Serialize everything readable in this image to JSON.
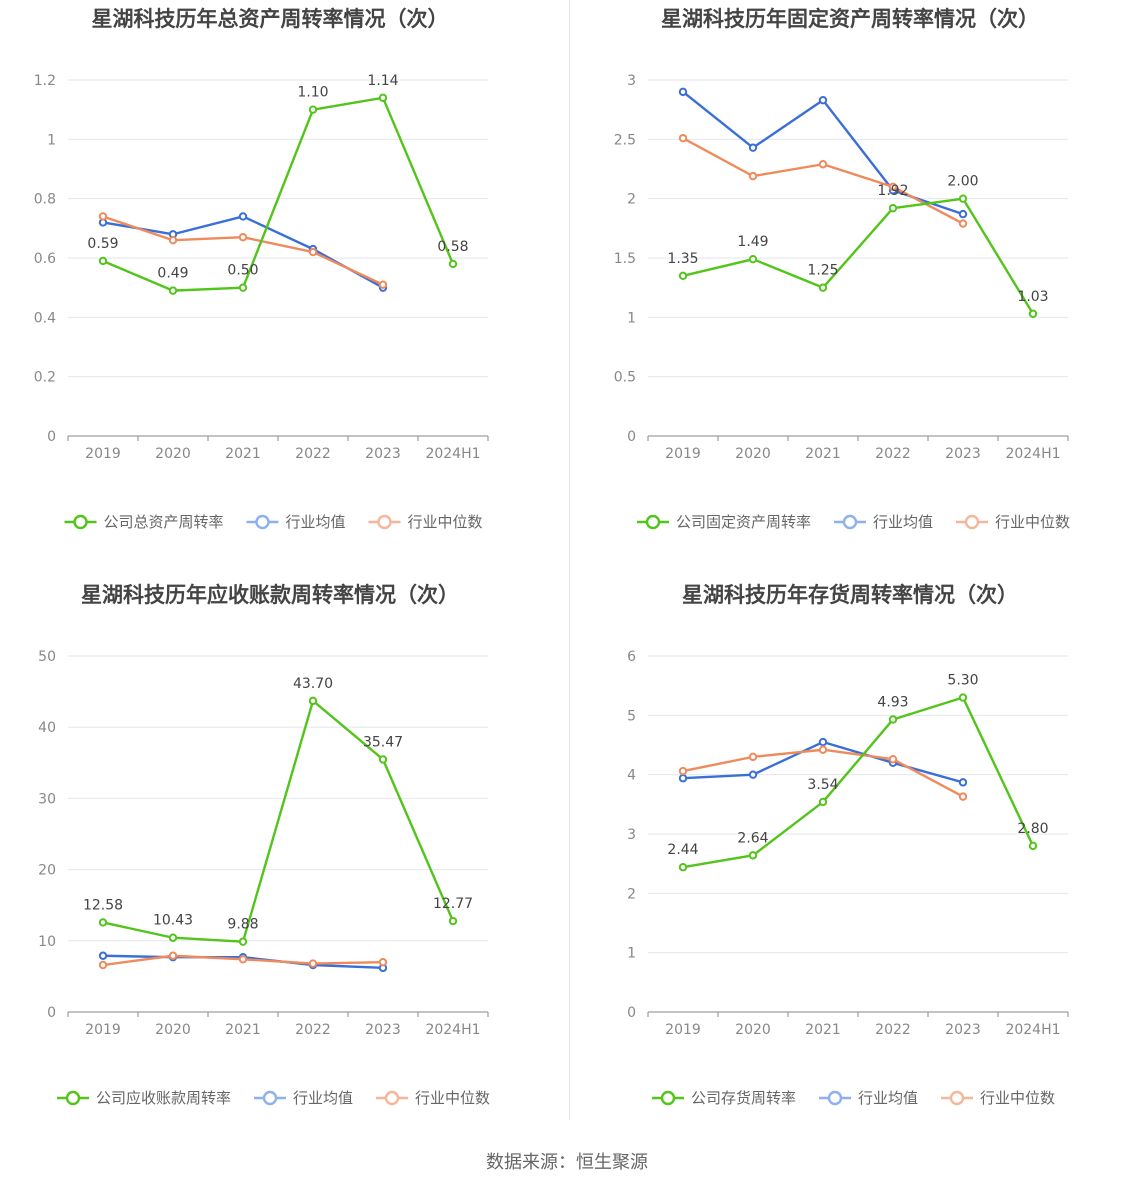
{
  "source": "数据来源：恒生聚源",
  "colors": {
    "company": "#52c41a",
    "avg": "#3a6fd8",
    "median": "#ef8a5c",
    "avg_legend": "#8fb0ee",
    "median_legend": "#f6b69c"
  },
  "chart_data": [
    {
      "type": "line",
      "title": "星湖科技历年总资产周转率情况（次）",
      "categories": [
        "2019",
        "2020",
        "2021",
        "2022",
        "2023",
        "2024H1"
      ],
      "ylim": [
        0,
        1.2
      ],
      "yticks": [
        0,
        0.2,
        0.4,
        0.6,
        0.8,
        1,
        1.2
      ],
      "ytick_labels": [
        "0",
        "0.2",
        "0.4",
        "0.6",
        "0.8",
        "1",
        "1.2"
      ],
      "grid": true,
      "legend": "bottom",
      "series": [
        {
          "name": "公司总资产周转率",
          "values": [
            0.59,
            0.49,
            0.5,
            1.1,
            1.14,
            0.58
          ],
          "labels": [
            "0.59",
            "0.49",
            "0.50",
            "1.10",
            "1.14",
            "0.58"
          ]
        },
        {
          "name": "行业均值",
          "values": [
            0.72,
            0.68,
            0.74,
            0.63,
            0.5,
            null
          ]
        },
        {
          "name": "行业中位数",
          "values": [
            0.74,
            0.66,
            0.67,
            0.62,
            0.51,
            null
          ]
        }
      ]
    },
    {
      "type": "line",
      "title": "星湖科技历年固定资产周转率情况（次）",
      "categories": [
        "2019",
        "2020",
        "2021",
        "2022",
        "2023",
        "2024H1"
      ],
      "ylim": [
        0,
        3
      ],
      "yticks": [
        0,
        0.5,
        1,
        1.5,
        2,
        2.5,
        3
      ],
      "ytick_labels": [
        "0",
        "0.5",
        "1",
        "1.5",
        "2",
        "2.5",
        "3"
      ],
      "grid": true,
      "legend": "bottom",
      "series": [
        {
          "name": "公司固定资产周转率",
          "values": [
            1.35,
            1.49,
            1.25,
            1.92,
            2.0,
            1.03
          ],
          "labels": [
            "1.35",
            "1.49",
            "1.25",
            "1.92",
            "2.00",
            "1.03"
          ]
        },
        {
          "name": "行业均值",
          "values": [
            2.9,
            2.43,
            2.83,
            2.07,
            1.87,
            null
          ]
        },
        {
          "name": "行业中位数",
          "values": [
            2.51,
            2.19,
            2.29,
            2.1,
            1.79,
            null
          ]
        }
      ]
    },
    {
      "type": "line",
      "title": "星湖科技历年应收账款周转率情况（次）",
      "categories": [
        "2019",
        "2020",
        "2021",
        "2022",
        "2023",
        "2024H1"
      ],
      "ylim": [
        0,
        50
      ],
      "yticks": [
        0,
        10,
        20,
        30,
        40,
        50
      ],
      "ytick_labels": [
        "0",
        "10",
        "20",
        "30",
        "40",
        "50"
      ],
      "grid": true,
      "legend": "bottom",
      "series": [
        {
          "name": "公司应收账款周转率",
          "values": [
            12.58,
            10.43,
            9.88,
            43.7,
            35.47,
            12.77
          ],
          "labels": [
            "12.58",
            "10.43",
            "9.88",
            "43.70",
            "35.47",
            "12.77"
          ]
        },
        {
          "name": "行业均值",
          "values": [
            7.9,
            7.7,
            7.7,
            6.6,
            6.2,
            null
          ]
        },
        {
          "name": "行业中位数",
          "values": [
            6.6,
            7.9,
            7.4,
            6.8,
            7.0,
            null
          ]
        }
      ]
    },
    {
      "type": "line",
      "title": "星湖科技历年存货周转率情况（次）",
      "categories": [
        "2019",
        "2020",
        "2021",
        "2022",
        "2023",
        "2024H1"
      ],
      "ylim": [
        0,
        6
      ],
      "yticks": [
        0,
        1,
        2,
        3,
        4,
        5,
        6
      ],
      "ytick_labels": [
        "0",
        "1",
        "2",
        "3",
        "4",
        "5",
        "6"
      ],
      "grid": true,
      "legend": "bottom",
      "series": [
        {
          "name": "公司存货周转率",
          "values": [
            2.44,
            2.64,
            3.54,
            4.93,
            5.3,
            2.8
          ],
          "labels": [
            "2.44",
            "2.64",
            "3.54",
            "4.93",
            "5.30",
            "2.80"
          ]
        },
        {
          "name": "行业均值",
          "values": [
            3.94,
            4.0,
            4.55,
            4.2,
            3.87,
            null
          ]
        },
        {
          "name": "行业中位数",
          "values": [
            4.06,
            4.3,
            4.42,
            4.26,
            3.63,
            null
          ]
        }
      ]
    }
  ]
}
